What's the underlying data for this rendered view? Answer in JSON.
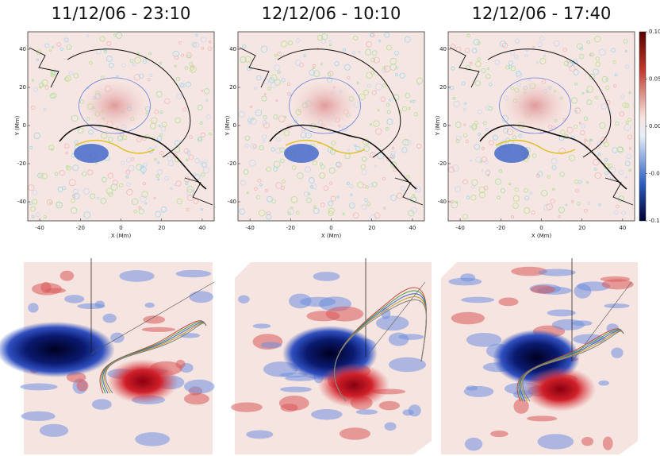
{
  "panels": [
    {
      "title": "11/12/06 - 23:10",
      "xlabel": "X (Mm)",
      "ylabel": "Y (Mm)",
      "xticks": [
        -40,
        -20,
        0,
        20,
        40
      ],
      "yticks": [
        -40,
        -20,
        0,
        20,
        40
      ]
    },
    {
      "title": "12/12/06 - 10:10",
      "xlabel": "X (Mm)",
      "ylabel": "Y (Mm)",
      "xticks": [
        -40,
        -20,
        0,
        20,
        40
      ],
      "yticks": [
        -40,
        -20,
        0,
        20,
        40
      ]
    },
    {
      "title": "12/12/06 - 17:40",
      "xlabel": "X (Mm)",
      "ylabel": "Y (Mm)",
      "xticks": [
        -40,
        -20,
        0,
        20,
        40
      ],
      "yticks": [
        -40,
        -20,
        0,
        20,
        40
      ]
    }
  ],
  "colorbar": {
    "ticks": [
      {
        "value": 0.1,
        "label": "0.10"
      },
      {
        "value": 0.05,
        "label": "0.05"
      },
      {
        "value": 0,
        "label": "0.00"
      },
      {
        "value": -0.05,
        "label": "-0.05"
      },
      {
        "value": -0.1,
        "label": "-0.10"
      }
    ]
  }
}
